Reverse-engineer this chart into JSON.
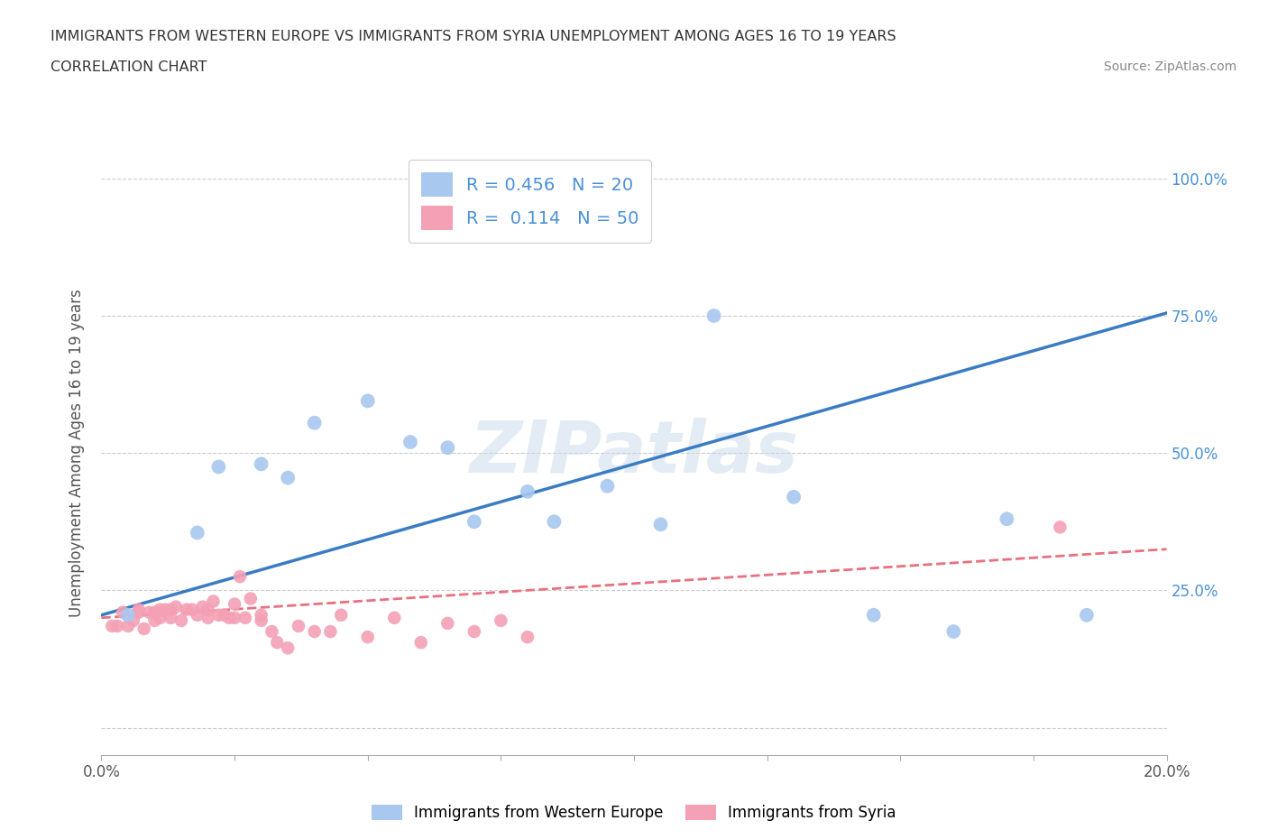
{
  "title_line1": "IMMIGRANTS FROM WESTERN EUROPE VS IMMIGRANTS FROM SYRIA UNEMPLOYMENT AMONG AGES 16 TO 19 YEARS",
  "title_line2": "CORRELATION CHART",
  "source": "Source: ZipAtlas.com",
  "ylabel": "Unemployment Among Ages 16 to 19 years",
  "watermark": "ZIPatlas",
  "xlim": [
    0.0,
    0.2
  ],
  "ylim": [
    -0.05,
    1.05
  ],
  "blue_R": 0.456,
  "blue_N": 20,
  "pink_R": 0.114,
  "pink_N": 50,
  "blue_color": "#A8C8F0",
  "pink_color": "#F4A0B5",
  "blue_line_color": "#3A7CC4",
  "pink_line_color": "#E87080",
  "legend_label_blue": "Immigrants from Western Europe",
  "legend_label_pink": "Immigrants from Syria",
  "blue_scatter_x": [
    0.005,
    0.018,
    0.022,
    0.03,
    0.035,
    0.04,
    0.05,
    0.058,
    0.065,
    0.07,
    0.08,
    0.085,
    0.095,
    0.105,
    0.115,
    0.13,
    0.145,
    0.16,
    0.17,
    0.185
  ],
  "blue_scatter_y": [
    0.205,
    0.355,
    0.475,
    0.48,
    0.455,
    0.555,
    0.595,
    0.52,
    0.51,
    0.375,
    0.43,
    0.375,
    0.44,
    0.37,
    0.75,
    0.42,
    0.205,
    0.175,
    0.38,
    0.205
  ],
  "pink_scatter_x": [
    0.002,
    0.003,
    0.004,
    0.005,
    0.006,
    0.007,
    0.007,
    0.008,
    0.009,
    0.01,
    0.01,
    0.011,
    0.011,
    0.012,
    0.013,
    0.013,
    0.014,
    0.015,
    0.016,
    0.017,
    0.018,
    0.019,
    0.02,
    0.02,
    0.021,
    0.022,
    0.023,
    0.024,
    0.025,
    0.025,
    0.026,
    0.027,
    0.028,
    0.03,
    0.03,
    0.032,
    0.033,
    0.035,
    0.037,
    0.04,
    0.043,
    0.045,
    0.05,
    0.055,
    0.06,
    0.065,
    0.07,
    0.075,
    0.08,
    0.18
  ],
  "pink_scatter_y": [
    0.185,
    0.185,
    0.21,
    0.185,
    0.195,
    0.21,
    0.215,
    0.18,
    0.21,
    0.195,
    0.21,
    0.2,
    0.215,
    0.215,
    0.2,
    0.215,
    0.22,
    0.195,
    0.215,
    0.215,
    0.205,
    0.22,
    0.215,
    0.2,
    0.23,
    0.205,
    0.205,
    0.2,
    0.2,
    0.225,
    0.275,
    0.2,
    0.235,
    0.195,
    0.205,
    0.175,
    0.155,
    0.145,
    0.185,
    0.175,
    0.175,
    0.205,
    0.165,
    0.2,
    0.155,
    0.19,
    0.175,
    0.195,
    0.165,
    0.365
  ],
  "grid_color": "#CCCCCC",
  "background_color": "#FFFFFF",
  "label_color": "#4A90D9"
}
